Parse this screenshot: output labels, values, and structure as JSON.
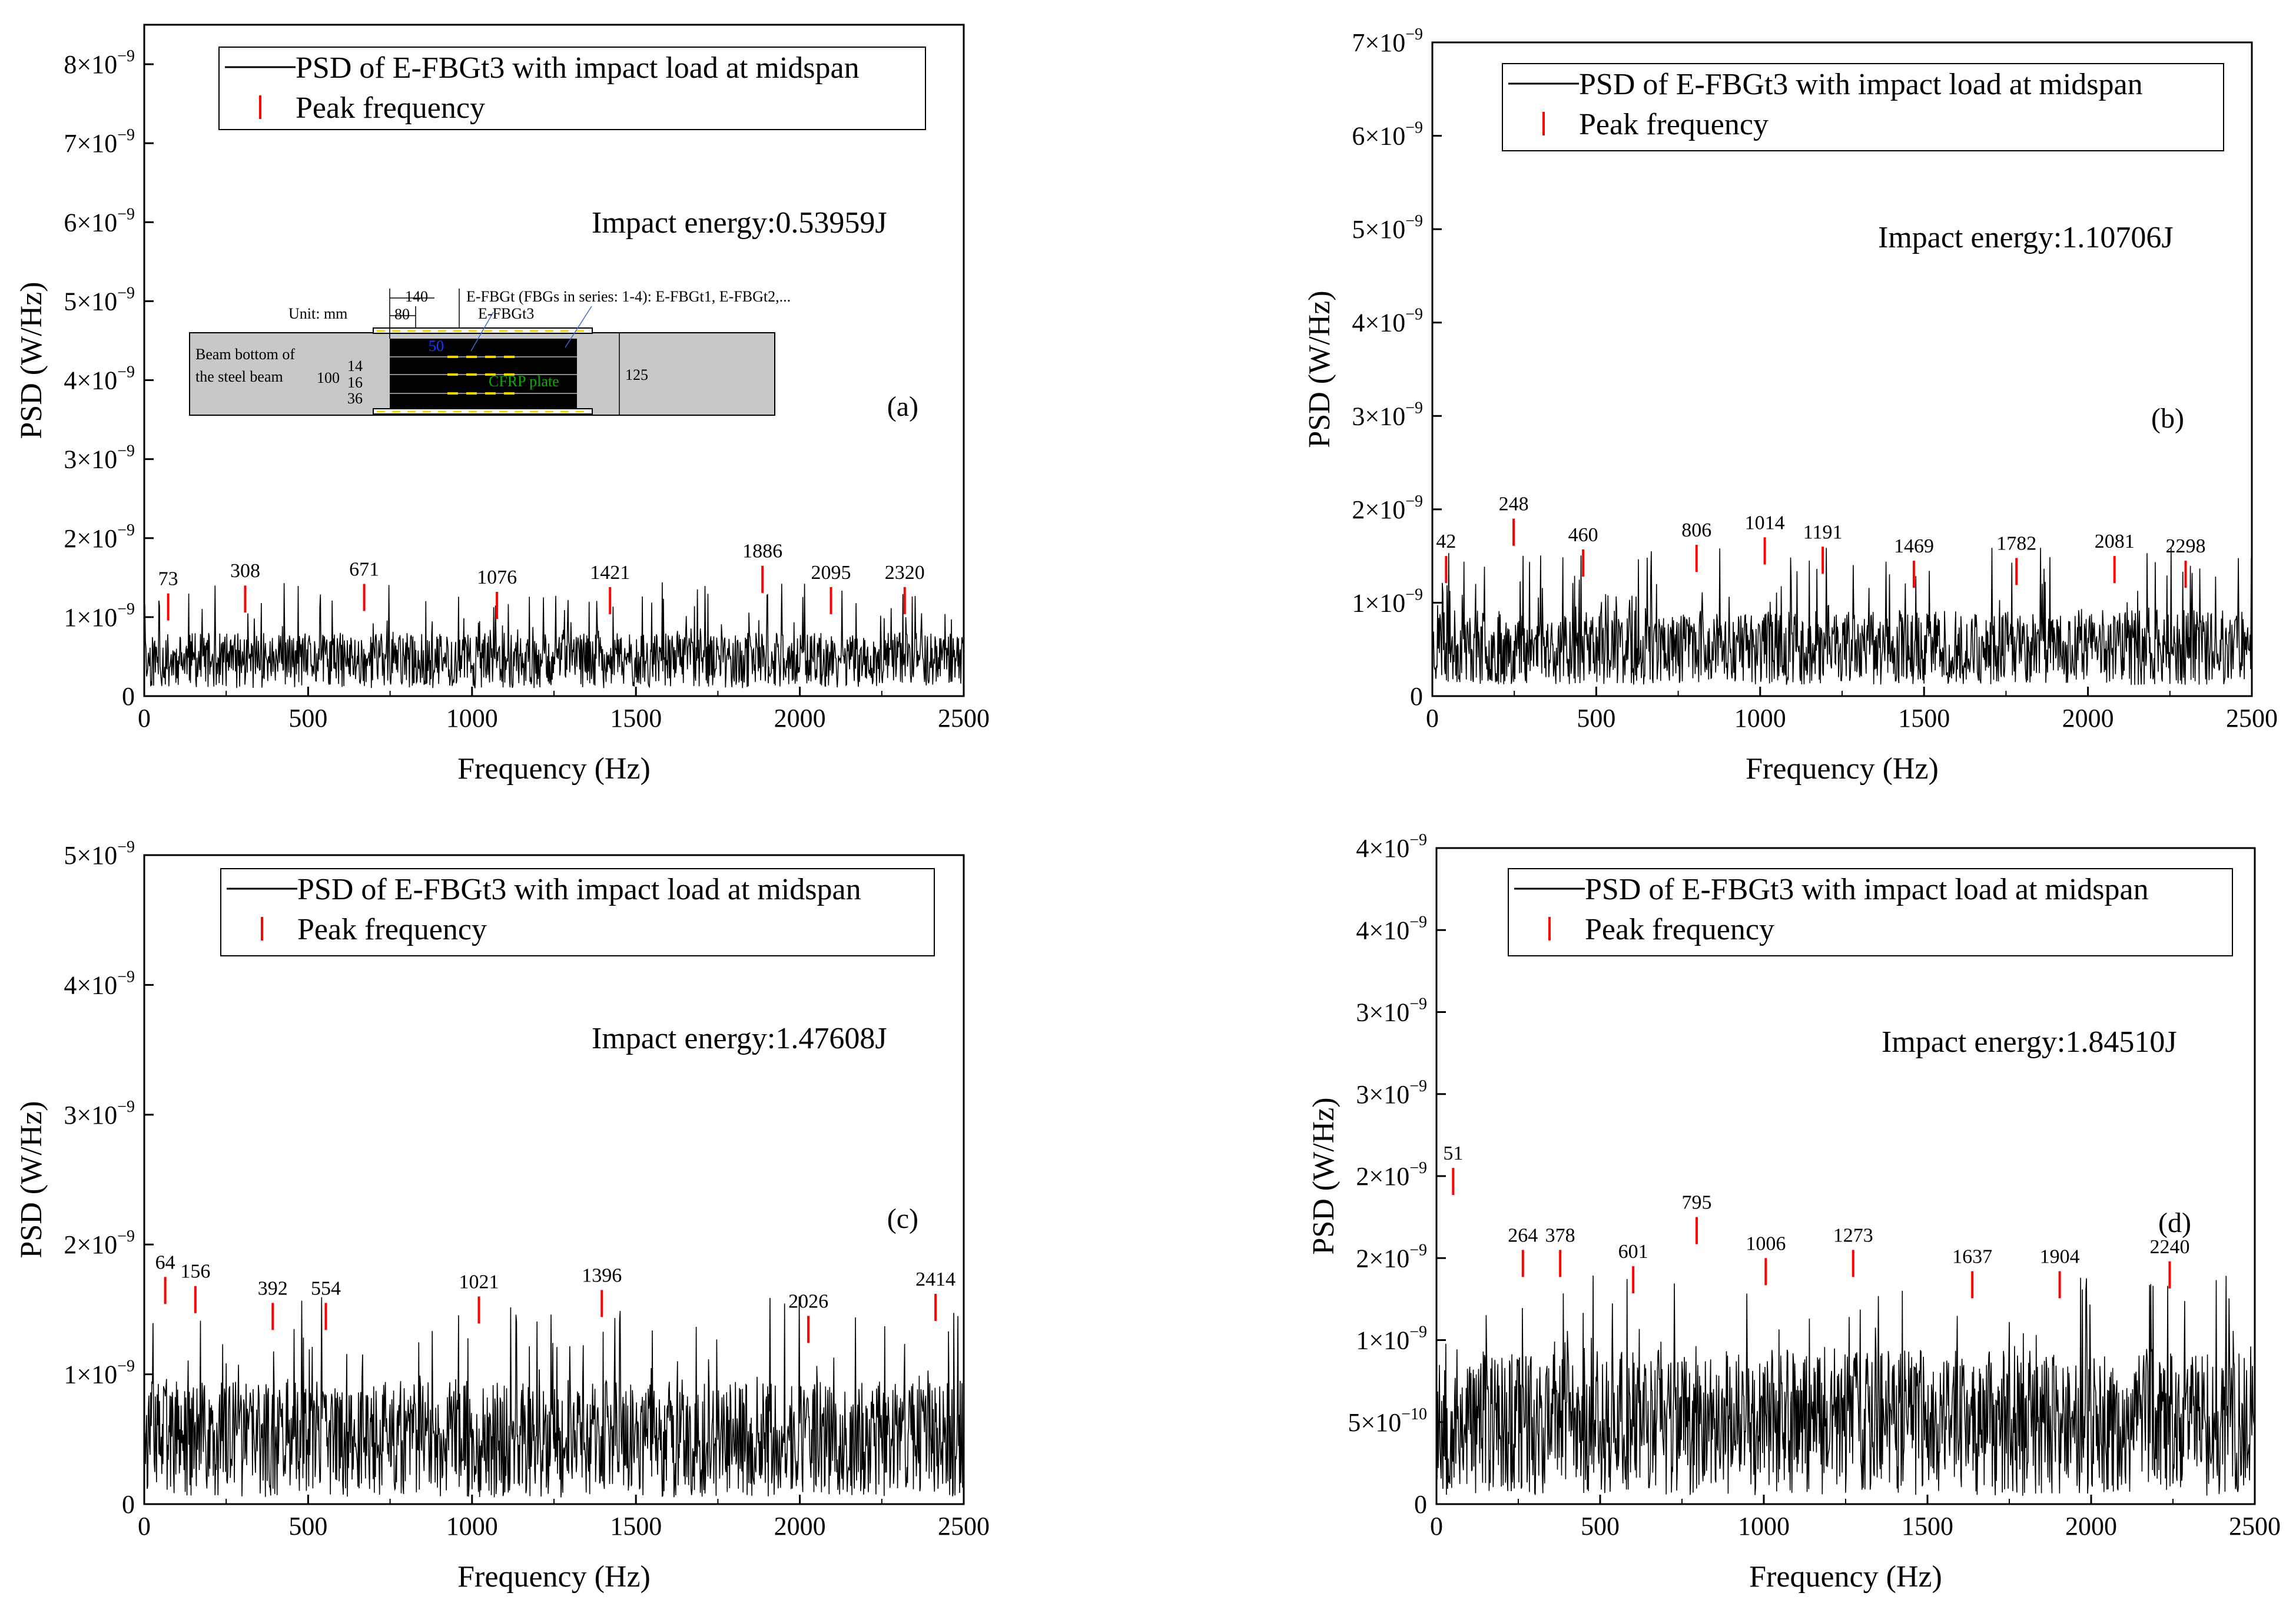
{
  "figure": {
    "xlabel": "Frequency (Hz)",
    "ylabel": "PSD (W/Hz)",
    "legend_line": "PSD of E-FBGt3 with impact load at midspan",
    "legend_peak": "Peak frequency"
  },
  "inset": {
    "unit": "Unit: mm",
    "label_main": "E-FBGt (FBGs in series: 1-4): E-FBGt1, E-FBGt2,...",
    "label_sub": "E-FBGt3",
    "beam_label_1": "Beam bottom of",
    "beam_label_2": "the steel beam",
    "plate_label": "CFRP plate",
    "dim_140": "140",
    "dim_80": "80",
    "dim_50": "50",
    "dim_100": "100",
    "dim_14": "14",
    "dim_16": "16",
    "dim_36": "36",
    "dim_125": "125"
  },
  "colors": {
    "signal": "#000000",
    "peak": "#ff0000",
    "inset_bg": "#c8c8c8",
    "inset_plate": "#000000",
    "inset_fbg": "#f2d200",
    "inset_dim50": "#1a3cff",
    "inset_cfrp": "#00b000"
  },
  "chart_data": [
    {
      "type": "line",
      "panel": "(a)",
      "energy_text": "Impact energy:0.53959J",
      "xlim": [
        0,
        2500
      ],
      "ylim": [
        0,
        8.5e-09
      ],
      "xticks": [
        0,
        500,
        1000,
        1500,
        2000,
        2500
      ],
      "yticks": [
        {
          "v": 0,
          "m": "0",
          "e": ""
        },
        {
          "v": 1e-09,
          "m": "1×10",
          "e": "−9"
        },
        {
          "v": 2e-09,
          "m": "2×10",
          "e": "−9"
        },
        {
          "v": 3e-09,
          "m": "3×10",
          "e": "−9"
        },
        {
          "v": 4e-09,
          "m": "4×10",
          "e": "−9"
        },
        {
          "v": 5e-09,
          "m": "5×10",
          "e": "−9"
        },
        {
          "v": 6e-09,
          "m": "6×10",
          "e": "−9"
        },
        {
          "v": 7e-09,
          "m": "7×10",
          "e": "−9"
        },
        {
          "v": 8e-09,
          "m": "8×10",
          "e": "−9"
        }
      ],
      "noise": {
        "base": 4.5e-10,
        "spread": 3.5e-10,
        "maxv": 1.45e-09
      },
      "peaks": [
        {
          "f": 73,
          "v": 1.3e-09,
          "label": "73"
        },
        {
          "f": 308,
          "v": 1.4e-09,
          "label": "308"
        },
        {
          "f": 671,
          "v": 1.42e-09,
          "label": "671"
        },
        {
          "f": 1076,
          "v": 1.32e-09,
          "label": "1076"
        },
        {
          "f": 1421,
          "v": 1.38e-09,
          "label": "1421"
        },
        {
          "f": 1886,
          "v": 1.65e-09,
          "label": "1886"
        },
        {
          "f": 2095,
          "v": 1.38e-09,
          "label": "2095"
        },
        {
          "f": 2320,
          "v": 1.38e-09,
          "label": "2320"
        }
      ]
    },
    {
      "type": "line",
      "panel": "(b)",
      "energy_text": "Impact energy:1.10706J",
      "xlim": [
        0,
        2500
      ],
      "ylim": [
        0,
        7e-09
      ],
      "xticks": [
        0,
        500,
        1000,
        1500,
        2000,
        2500
      ],
      "yticks": [
        {
          "v": 0,
          "m": "0",
          "e": ""
        },
        {
          "v": 1e-09,
          "m": "1×10",
          "e": "−9"
        },
        {
          "v": 2e-09,
          "m": "2×10",
          "e": "−9"
        },
        {
          "v": 3e-09,
          "m": "3×10",
          "e": "−9"
        },
        {
          "v": 4e-09,
          "m": "4×10",
          "e": "−9"
        },
        {
          "v": 5e-09,
          "m": "5×10",
          "e": "−9"
        },
        {
          "v": 6e-09,
          "m": "6×10",
          "e": "−9"
        },
        {
          "v": 7e-09,
          "m": "7×10",
          "e": "−9"
        }
      ],
      "noise": {
        "base": 5.2e-10,
        "spread": 4e-10,
        "maxv": 1.6e-09
      },
      "peaks": [
        {
          "f": 42,
          "v": 1.5e-09,
          "label": "42"
        },
        {
          "f": 248,
          "v": 1.9e-09,
          "label": "248"
        },
        {
          "f": 460,
          "v": 1.57e-09,
          "label": "460"
        },
        {
          "f": 806,
          "v": 1.62e-09,
          "label": "806"
        },
        {
          "f": 1014,
          "v": 1.7e-09,
          "label": "1014"
        },
        {
          "f": 1191,
          "v": 1.6e-09,
          "label": "1191"
        },
        {
          "f": 1469,
          "v": 1.45e-09,
          "label": "1469"
        },
        {
          "f": 1782,
          "v": 1.48e-09,
          "label": "1782"
        },
        {
          "f": 2081,
          "v": 1.5e-09,
          "label": "2081"
        },
        {
          "f": 2298,
          "v": 1.45e-09,
          "label": "2298"
        }
      ]
    },
    {
      "type": "line",
      "panel": "(c)",
      "energy_text": "Impact energy:1.47608J",
      "xlim": [
        0,
        2500
      ],
      "ylim": [
        0,
        5e-09
      ],
      "xticks": [
        0,
        500,
        1000,
        1500,
        2000,
        2500
      ],
      "yticks": [
        {
          "v": 0,
          "m": "0",
          "e": ""
        },
        {
          "v": 1e-09,
          "m": "1×10",
          "e": "−9"
        },
        {
          "v": 2e-09,
          "m": "2×10",
          "e": "−9"
        },
        {
          "v": 3e-09,
          "m": "3×10",
          "e": "−9"
        },
        {
          "v": 4e-09,
          "m": "4×10",
          "e": "−9"
        },
        {
          "v": 5e-09,
          "m": "5×10",
          "e": "−9"
        }
      ],
      "noise": {
        "base": 5e-10,
        "spread": 4.5e-10,
        "maxv": 1.6e-09
      },
      "peaks": [
        {
          "f": 64,
          "v": 1.75e-09,
          "label": "64"
        },
        {
          "f": 156,
          "v": 1.68e-09,
          "label": "156"
        },
        {
          "f": 392,
          "v": 1.55e-09,
          "label": "392"
        },
        {
          "f": 554,
          "v": 1.55e-09,
          "label": "554"
        },
        {
          "f": 1021,
          "v": 1.6e-09,
          "label": "1021"
        },
        {
          "f": 1396,
          "v": 1.65e-09,
          "label": "1396"
        },
        {
          "f": 2026,
          "v": 1.45e-09,
          "label": "2026"
        },
        {
          "f": 2414,
          "v": 1.62e-09,
          "label": "2414"
        }
      ]
    },
    {
      "type": "line",
      "panel": "(d)",
      "energy_text": "Impact energy:1.84510J",
      "xlim": [
        0,
        2500
      ],
      "ylim": [
        0,
        4e-09
      ],
      "xticks": [
        0,
        500,
        1000,
        1500,
        2000,
        2500
      ],
      "yticks": [
        {
          "v": 0,
          "m": "0",
          "e": ""
        },
        {
          "v": 5e-10,
          "m": "5×10",
          "e": "−10"
        },
        {
          "v": 1e-09,
          "m": "1×10",
          "e": "−9"
        },
        {
          "v": 1.5e-09,
          "m": "2×10",
          "e": "−9"
        },
        {
          "v": 2e-09,
          "m": "2×10",
          "e": "−9"
        },
        {
          "v": 2.5e-09,
          "m": "3×10",
          "e": "−9"
        },
        {
          "v": 3e-09,
          "m": "3×10",
          "e": "−9"
        },
        {
          "v": 3.5e-09,
          "m": "4×10",
          "e": "−9"
        },
        {
          "v": 4e-09,
          "m": "4×10",
          "e": "−9"
        }
      ],
      "noise": {
        "base": 5e-10,
        "spread": 4.5e-10,
        "maxv": 1.4e-09
      },
      "peaks": [
        {
          "f": 51,
          "v": 2.05e-09,
          "label": "51"
        },
        {
          "f": 264,
          "v": 1.55e-09,
          "label": "264"
        },
        {
          "f": 378,
          "v": 1.55e-09,
          "label": "378"
        },
        {
          "f": 601,
          "v": 1.45e-09,
          "label": "601"
        },
        {
          "f": 795,
          "v": 1.75e-09,
          "label": "795"
        },
        {
          "f": 1006,
          "v": 1.5e-09,
          "label": "1006"
        },
        {
          "f": 1273,
          "v": 1.55e-09,
          "label": "1273"
        },
        {
          "f": 1637,
          "v": 1.42e-09,
          "label": "1637"
        },
        {
          "f": 1904,
          "v": 1.42e-09,
          "label": "1904"
        },
        {
          "f": 2240,
          "v": 1.48e-09,
          "label": "2240"
        }
      ]
    }
  ]
}
